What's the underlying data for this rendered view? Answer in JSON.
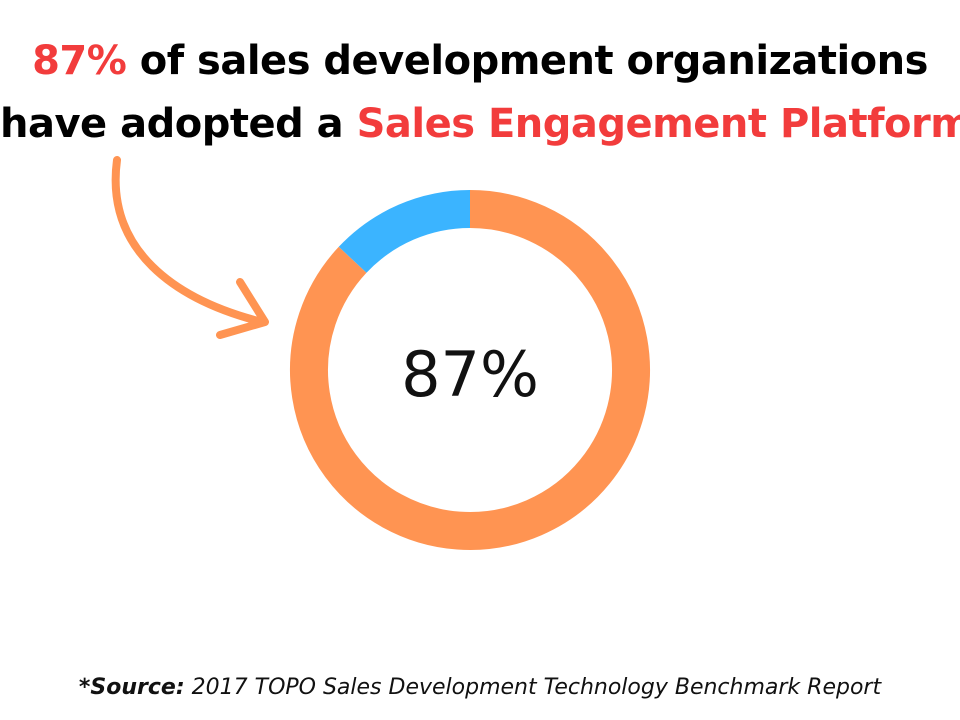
{
  "headline": {
    "line1_accent": "87%",
    "line1_rest": " of sales development organizations",
    "line2_start": "have adopted a ",
    "line2_accent": "Sales Engagement Platform"
  },
  "colors": {
    "accent_red": "#f23c3c",
    "donut_primary": "#ff9452",
    "donut_secondary": "#3bb4ff",
    "arrow": "#ff9452"
  },
  "chart_data": {
    "type": "pie",
    "style": "donut",
    "center_label": "87%",
    "slices": [
      {
        "value": 87,
        "color": "#ff9452"
      },
      {
        "value": 13,
        "color": "#3bb4ff"
      }
    ]
  },
  "source": {
    "prefix": "*Source:",
    "text": " 2017 TOPO Sales Development Technology Benchmark Report"
  }
}
